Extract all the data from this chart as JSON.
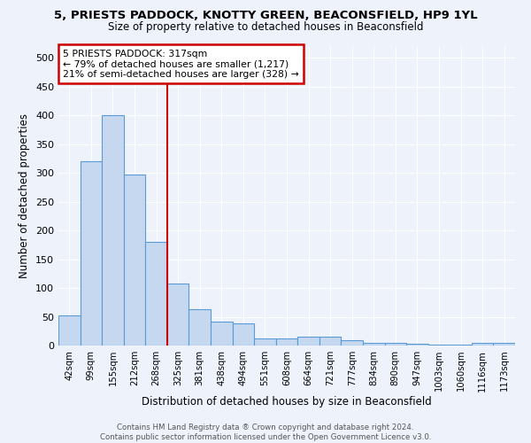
{
  "title1": "5, PRIESTS PADDOCK, KNOTTY GREEN, BEACONSFIELD, HP9 1YL",
  "title2": "Size of property relative to detached houses in Beaconsfield",
  "xlabel": "Distribution of detached houses by size in Beaconsfield",
  "ylabel": "Number of detached properties",
  "categories": [
    "42sqm",
    "99sqm",
    "155sqm",
    "212sqm",
    "268sqm",
    "325sqm",
    "381sqm",
    "438sqm",
    "494sqm",
    "551sqm",
    "608sqm",
    "664sqm",
    "721sqm",
    "777sqm",
    "834sqm",
    "890sqm",
    "947sqm",
    "1003sqm",
    "1060sqm",
    "1116sqm",
    "1173sqm"
  ],
  "values": [
    53,
    320,
    400,
    298,
    180,
    108,
    63,
    42,
    38,
    12,
    12,
    15,
    15,
    10,
    5,
    5,
    3,
    2,
    1,
    5,
    5
  ],
  "bar_color": "#c5d8f0",
  "bar_edge_color": "#5b9bd5",
  "red_line_index": 5,
  "annotation_line1": "5 PRIESTS PADDOCK: 317sqm",
  "annotation_line2": "← 79% of detached houses are smaller (1,217)",
  "annotation_line3": "21% of semi-detached houses are larger (328) →",
  "annotation_box_color": "#ffffff",
  "annotation_box_edge": "#cc0000",
  "footer1": "Contains HM Land Registry data ® Crown copyright and database right 2024.",
  "footer2": "Contains public sector information licensed under the Open Government Licence v3.0.",
  "ylim": [
    0,
    520
  ],
  "yticks": [
    0,
    50,
    100,
    150,
    200,
    250,
    300,
    350,
    400,
    450,
    500
  ],
  "background_color": "#eef2fb",
  "grid_color": "#ffffff"
}
